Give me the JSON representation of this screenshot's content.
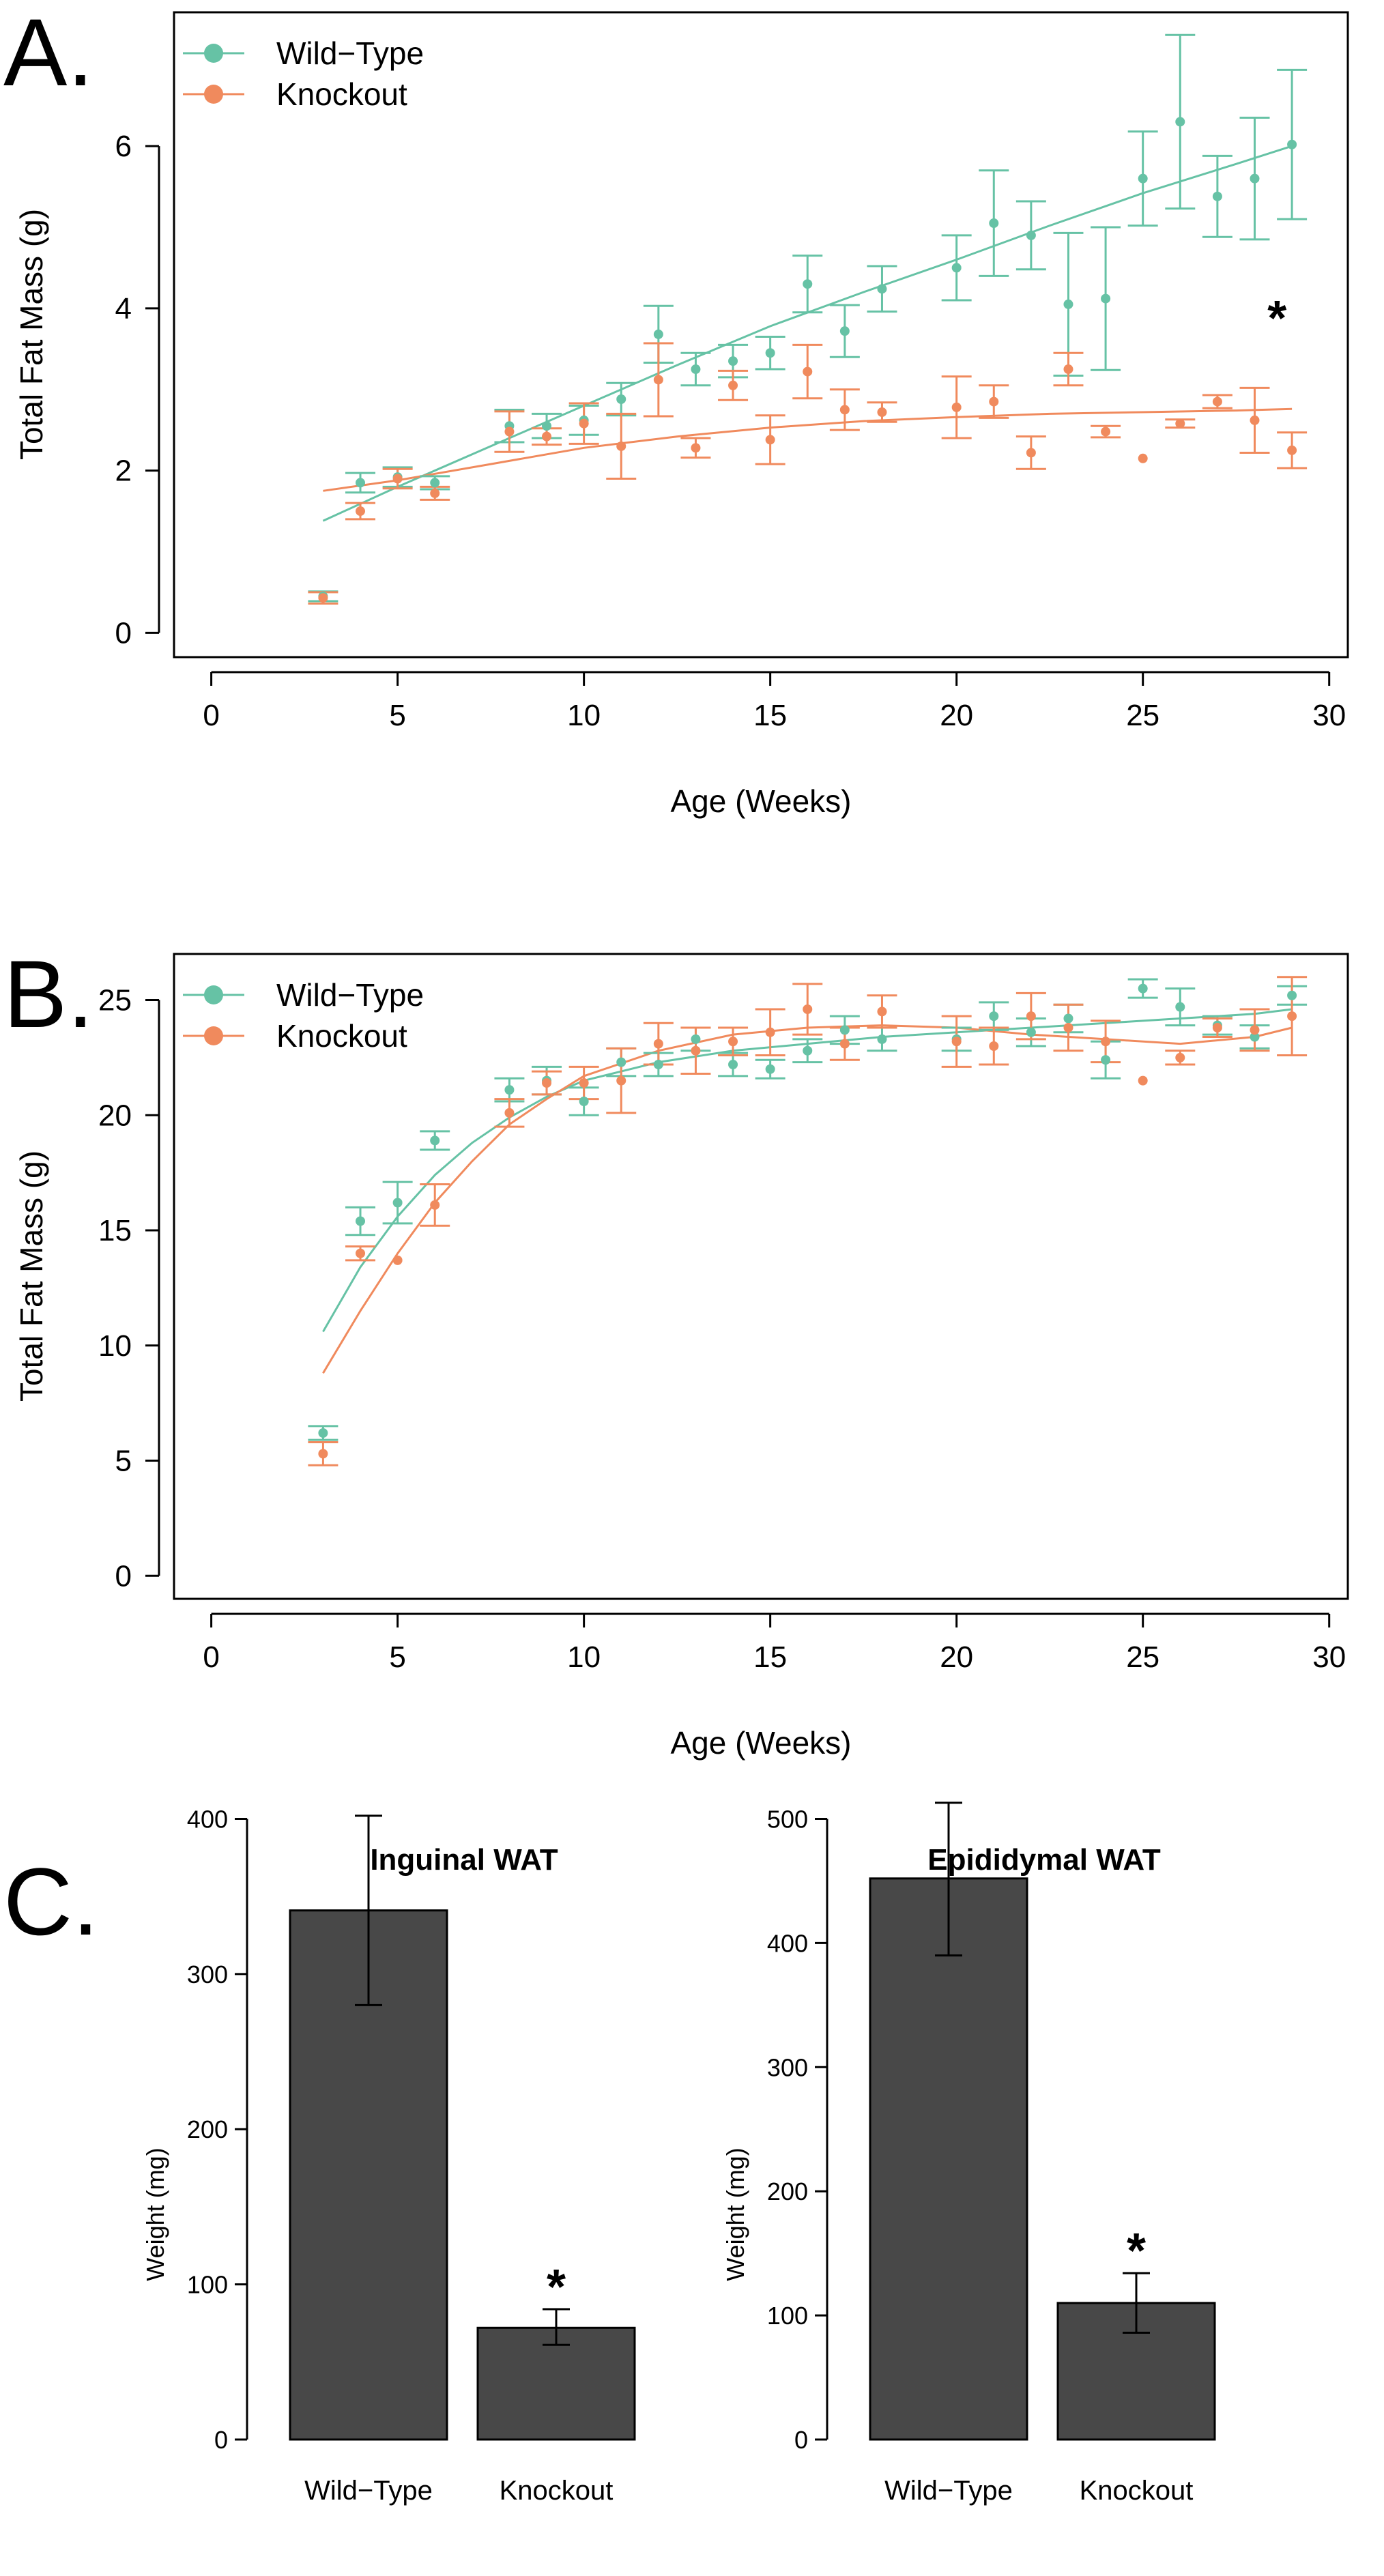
{
  "colors": {
    "wild_type": "#66c2a5",
    "knockout": "#f08a5d",
    "bar": "#484848"
  },
  "panels": [
    {
      "letter": "A."
    },
    {
      "letter": "B."
    },
    {
      "letter": "C."
    }
  ],
  "chart_data": [
    {
      "type": "scatter",
      "title": "",
      "xlabel": "Age (Weeks)",
      "ylabel": "Total Fat Mass (g)",
      "xlim": [
        -1,
        30.5
      ],
      "ylim": [
        -0.3,
        7.65
      ],
      "xticks": [
        0,
        5,
        10,
        15,
        20,
        25,
        30
      ],
      "yticks": [
        0,
        2,
        4,
        6
      ],
      "legend": "top-left",
      "grid": false,
      "annotations": [
        {
          "text": "*",
          "x": 28.6,
          "y": 4.05
        }
      ],
      "series": [
        {
          "name": "Wild−Type",
          "color": "#66c2a5",
          "x": [
            3,
            4,
            5,
            6,
            8,
            9,
            10,
            11,
            12,
            13,
            14,
            15,
            16,
            17,
            18,
            20,
            21,
            22,
            23,
            24,
            25,
            26,
            27,
            28,
            29
          ],
          "y": [
            0.45,
            1.85,
            1.92,
            1.85,
            2.55,
            2.55,
            2.62,
            2.88,
            3.68,
            3.25,
            3.35,
            3.45,
            4.3,
            3.72,
            4.24,
            4.5,
            5.05,
            4.9,
            4.05,
            4.12,
            5.6,
            6.3,
            5.38,
            5.6,
            6.02
          ],
          "err": [
            0.06,
            0.12,
            0.12,
            0.08,
            0.2,
            0.15,
            0.18,
            0.2,
            0.35,
            0.2,
            0.2,
            0.2,
            0.35,
            0.32,
            0.28,
            0.4,
            0.65,
            0.42,
            0.88,
            0.88,
            0.58,
            1.07,
            0.5,
            0.75,
            0.92
          ],
          "fit_x": [
            3,
            5,
            7.5,
            10,
            12.5,
            15,
            17.5,
            20,
            22.5,
            25,
            27.5,
            29
          ],
          "fit_y": [
            1.38,
            1.8,
            2.3,
            2.8,
            3.3,
            3.78,
            4.2,
            4.6,
            5.02,
            5.42,
            5.78,
            6.0
          ]
        },
        {
          "name": "Knockout",
          "color": "#f08a5d",
          "x": [
            3,
            4,
            5,
            6,
            8,
            9,
            10,
            11,
            12,
            13,
            14,
            15,
            16,
            17,
            18,
            20,
            21,
            22,
            23,
            24,
            25,
            26,
            27,
            28,
            29
          ],
          "y": [
            0.43,
            1.5,
            1.9,
            1.72,
            2.48,
            2.42,
            2.58,
            2.3,
            3.12,
            2.28,
            3.05,
            2.38,
            3.22,
            2.75,
            2.72,
            2.78,
            2.85,
            2.22,
            3.25,
            2.48,
            2.15,
            2.58,
            2.85,
            2.62,
            2.25
          ],
          "err": [
            0.07,
            0.1,
            0.12,
            0.08,
            0.25,
            0.1,
            0.25,
            0.4,
            0.45,
            0.12,
            0.18,
            0.3,
            0.33,
            0.25,
            0.12,
            0.38,
            0.2,
            0.2,
            0.2,
            0.07,
            0,
            0.05,
            0.08,
            0.4,
            0.22
          ],
          "fit_x": [
            3,
            5,
            7.5,
            10,
            12.5,
            15,
            17.5,
            20,
            22.5,
            25,
            27.5,
            29
          ],
          "fit_y": [
            1.75,
            1.88,
            2.08,
            2.28,
            2.42,
            2.53,
            2.61,
            2.66,
            2.7,
            2.72,
            2.74,
            2.76
          ]
        }
      ]
    },
    {
      "type": "scatter",
      "title": "",
      "xlabel": "Age (Weeks)",
      "ylabel": "Total Fat Mass (g)",
      "xlim": [
        -1,
        30.5
      ],
      "ylim": [
        -1.0,
        27.0
      ],
      "xticks": [
        0,
        5,
        10,
        15,
        20,
        25,
        30
      ],
      "yticks": [
        0,
        5,
        10,
        15,
        20,
        25
      ],
      "legend": "top-left",
      "grid": false,
      "series": [
        {
          "name": "Wild−Type",
          "color": "#66c2a5",
          "x": [
            3,
            4,
            5,
            6,
            8,
            9,
            10,
            11,
            12,
            13,
            14,
            15,
            16,
            17,
            18,
            20,
            21,
            22,
            23,
            24,
            25,
            26,
            27,
            28,
            29
          ],
          "y": [
            6.2,
            15.4,
            16.2,
            18.9,
            21.1,
            21.5,
            20.6,
            22.3,
            22.2,
            23.3,
            22.2,
            22.0,
            22.8,
            23.7,
            23.3,
            23.3,
            24.3,
            23.6,
            24.2,
            22.4,
            25.5,
            24.7,
            23.9,
            23.4,
            25.2
          ],
          "err": [
            0.3,
            0.6,
            0.9,
            0.4,
            0.5,
            0.6,
            0.6,
            0.6,
            0.5,
            0.5,
            0.5,
            0.4,
            0.5,
            0.6,
            0.5,
            0.5,
            0.6,
            0.6,
            0.6,
            0.8,
            0.4,
            0.8,
            0.4,
            0.5,
            0.4
          ],
          "fit_x": [
            3,
            4,
            5,
            6,
            7,
            8,
            9,
            10,
            12,
            14,
            16,
            18,
            20,
            22,
            24,
            26,
            28,
            29
          ],
          "fit_y": [
            10.6,
            13.4,
            15.6,
            17.4,
            18.8,
            19.9,
            20.8,
            21.5,
            22.3,
            22.8,
            23.1,
            23.4,
            23.6,
            23.8,
            24.0,
            24.2,
            24.4,
            24.6
          ]
        },
        {
          "name": "Knockout",
          "color": "#f08a5d",
          "x": [
            3,
            4,
            5,
            6,
            8,
            9,
            10,
            11,
            12,
            13,
            14,
            15,
            16,
            17,
            18,
            20,
            21,
            22,
            23,
            24,
            25,
            26,
            27,
            28,
            29
          ],
          "y": [
            5.3,
            14.0,
            13.7,
            16.1,
            20.1,
            21.4,
            21.4,
            21.5,
            23.1,
            22.8,
            23.2,
            23.6,
            24.6,
            23.1,
            24.5,
            23.2,
            23.0,
            24.3,
            23.8,
            23.2,
            21.5,
            22.5,
            23.8,
            23.7,
            24.3
          ],
          "err": [
            0.5,
            0.3,
            0,
            0.9,
            0.6,
            0.5,
            0.7,
            1.4,
            0.9,
            1.0,
            0.6,
            1.0,
            1.1,
            0.7,
            0.7,
            1.1,
            0.8,
            1.0,
            1.0,
            0.9,
            0,
            0.3,
            0.4,
            0.9,
            1.7
          ],
          "fit_x": [
            3,
            4,
            5,
            6,
            7,
            8,
            9,
            10,
            12,
            14,
            16,
            18,
            20,
            22,
            24,
            26,
            28,
            29
          ],
          "fit_y": [
            8.8,
            11.5,
            14.0,
            16.2,
            18.0,
            19.6,
            20.7,
            21.7,
            22.8,
            23.5,
            23.8,
            23.9,
            23.8,
            23.5,
            23.3,
            23.1,
            23.4,
            23.8
          ]
        }
      ]
    },
    {
      "type": "bar",
      "title": "Inguinal WAT",
      "xlabel": "",
      "ylabel": "Weight (mg)",
      "ylim": [
        0,
        420
      ],
      "yticks": [
        0,
        100,
        200,
        300,
        400
      ],
      "categories": [
        "Wild−Type",
        "Knockout"
      ],
      "values": [
        341,
        72
      ],
      "err_upper": [
        402,
        84
      ],
      "err_lower": [
        280,
        61
      ],
      "annotations": [
        {
          "text": "*",
          "category": "Knockout"
        }
      ]
    },
    {
      "type": "bar",
      "title": "Epididymal WAT",
      "xlabel": "",
      "ylabel": "Weight (mg)",
      "ylim": [
        0,
        525
      ],
      "yticks": [
        0,
        100,
        200,
        300,
        400,
        500
      ],
      "categories": [
        "Wild−Type",
        "Knockout"
      ],
      "values": [
        452,
        110
      ],
      "err_upper": [
        513,
        134
      ],
      "err_lower": [
        390,
        86
      ],
      "annotations": [
        {
          "text": "*",
          "category": "Knockout"
        }
      ]
    }
  ]
}
